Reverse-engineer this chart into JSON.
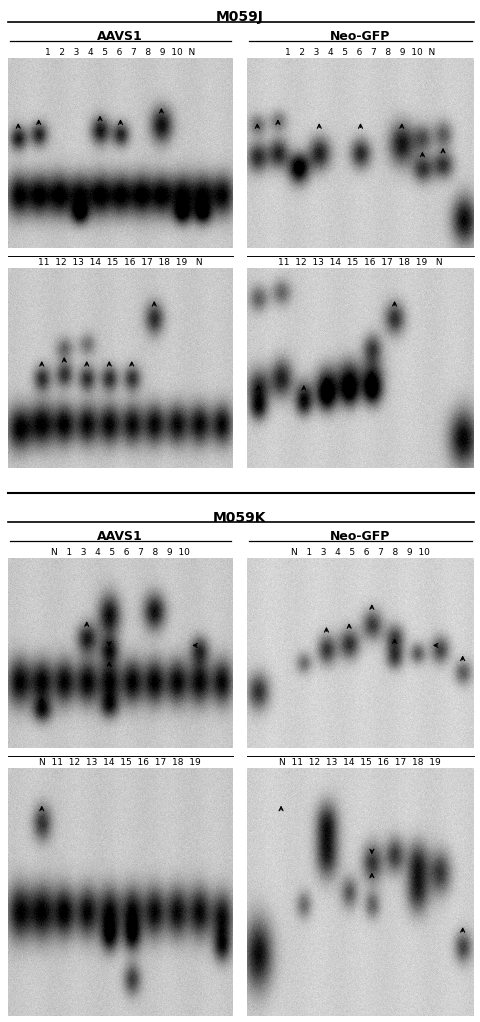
{
  "title_top": "M059J",
  "title_bottom": "M059K",
  "label_aavs1": "AAVS1",
  "label_neogfp": "Neo-GFP",
  "lanes_r1": "1   2   3   4   5   6   7   8   9  10  N",
  "lanes_r2": "11  12  13  14  15  16  17  18  19   N",
  "lanes_r3_left": "N   1   3   4   5   6   7   8   9  10",
  "lanes_r3_right": "N   1   3   4   5   6   7   8   9  10",
  "lanes_r4": "N  11  12  13  14  15  16  17  18  19",
  "title_fontsize": 10,
  "sublabel_fontsize": 9,
  "lane_fontsize": 6.5,
  "white": "#ffffff",
  "black": "#000000"
}
